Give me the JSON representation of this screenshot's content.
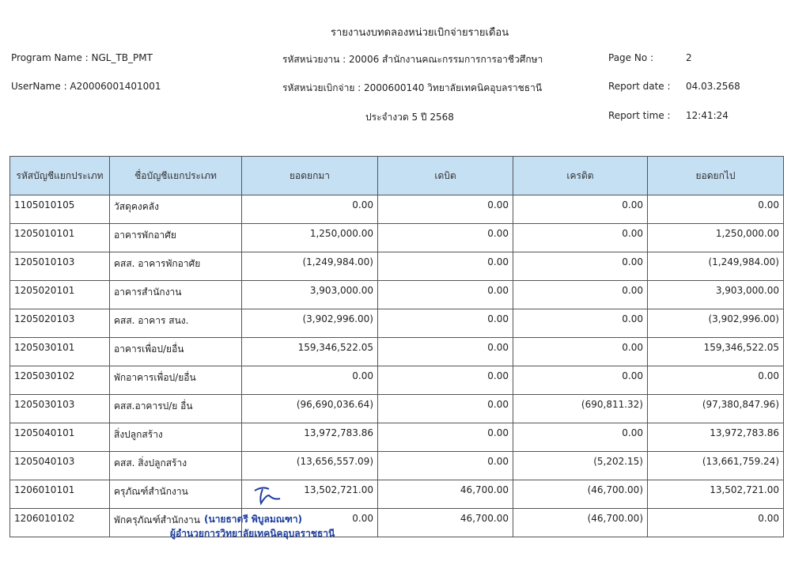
{
  "report": {
    "title": "รายงานงบทดลองหน่วยเบิกจ่ายรายเดือน",
    "program_name": "Program Name : NGL_TB_PMT",
    "username": "UserName : A20006001401001",
    "agency": "รหัสหน่วยงาน : 20006 สำนักงานคณะกรรมการการอาชีวศึกษา",
    "disbursing_unit": "รหัสหน่วยเบิกจ่าย : 2000600140 วิทยาลัยเทคนิคอุบลราชธานี",
    "period": "ประจำงวด 5 ปี 2568",
    "page_label": "Page No :",
    "page_value": "2",
    "date_label": "Report date :",
    "date_value": "04.03.2568",
    "time_label": "Report time :",
    "time_value": "12:41:24"
  },
  "table": {
    "headers": [
      "รหัสบัญชีแยกประเภท",
      "ชื่อบัญชีแยกประเภท",
      "ยอดยกมา",
      "เดบิต",
      "เครดิต",
      "ยอดยกไป"
    ],
    "rows": [
      [
        "1105010105",
        "วัสดุคงคลัง",
        "0.00",
        "0.00",
        "0.00",
        "0.00"
      ],
      [
        "1205010101",
        "อาคารพักอาศัย",
        "1,250,000.00",
        "0.00",
        "0.00",
        "1,250,000.00"
      ],
      [
        "1205010103",
        "คสส. อาคารพักอาศัย",
        "(1,249,984.00)",
        "0.00",
        "0.00",
        "(1,249,984.00)"
      ],
      [
        "1205020101",
        "อาคารสำนักงาน",
        "3,903,000.00",
        "0.00",
        "0.00",
        "3,903,000.00"
      ],
      [
        "1205020103",
        "คสส. อาคาร สนง.",
        "(3,902,996.00)",
        "0.00",
        "0.00",
        "(3,902,996.00)"
      ],
      [
        "1205030101",
        "อาคารเพื่อป/ยอื่น",
        "159,346,522.05",
        "0.00",
        "0.00",
        "159,346,522.05"
      ],
      [
        "1205030102",
        "พักอาคารเพื่อป/ยอื่น",
        "0.00",
        "0.00",
        "0.00",
        "0.00"
      ],
      [
        "1205030103",
        "คสส.อาคารป/ย อื่น",
        "(96,690,036.64)",
        "0.00",
        "(690,811.32)",
        "(97,380,847.96)"
      ],
      [
        "1205040101",
        "สิ่งปลูกสร้าง",
        "13,972,783.86",
        "0.00",
        "0.00",
        "13,972,783.86"
      ],
      [
        "1205040103",
        "คสส. สิ่งปลูกสร้าง",
        "(13,656,557.09)",
        "0.00",
        "(5,202.15)",
        "(13,661,759.24)"
      ],
      [
        "1206010101",
        "ครุภัณฑ์สำนักงาน",
        "13,502,721.00",
        "46,700.00",
        "(46,700.00)",
        "13,502,721.00"
      ],
      [
        "1206010102",
        "พักครุภัณฑ์สำนักงาน",
        "0.00",
        "46,700.00",
        "(46,700.00)",
        "0.00"
      ]
    ]
  },
  "signature": {
    "name": "(นายธาตรี พิบูลมณฑา)",
    "position": "ผู้อำนวยการวิทยาลัยเทคนิคอุบลราชธานี"
  },
  "colors": {
    "header_bg": "#c5dff3",
    "signature": "#1d3e9e"
  }
}
